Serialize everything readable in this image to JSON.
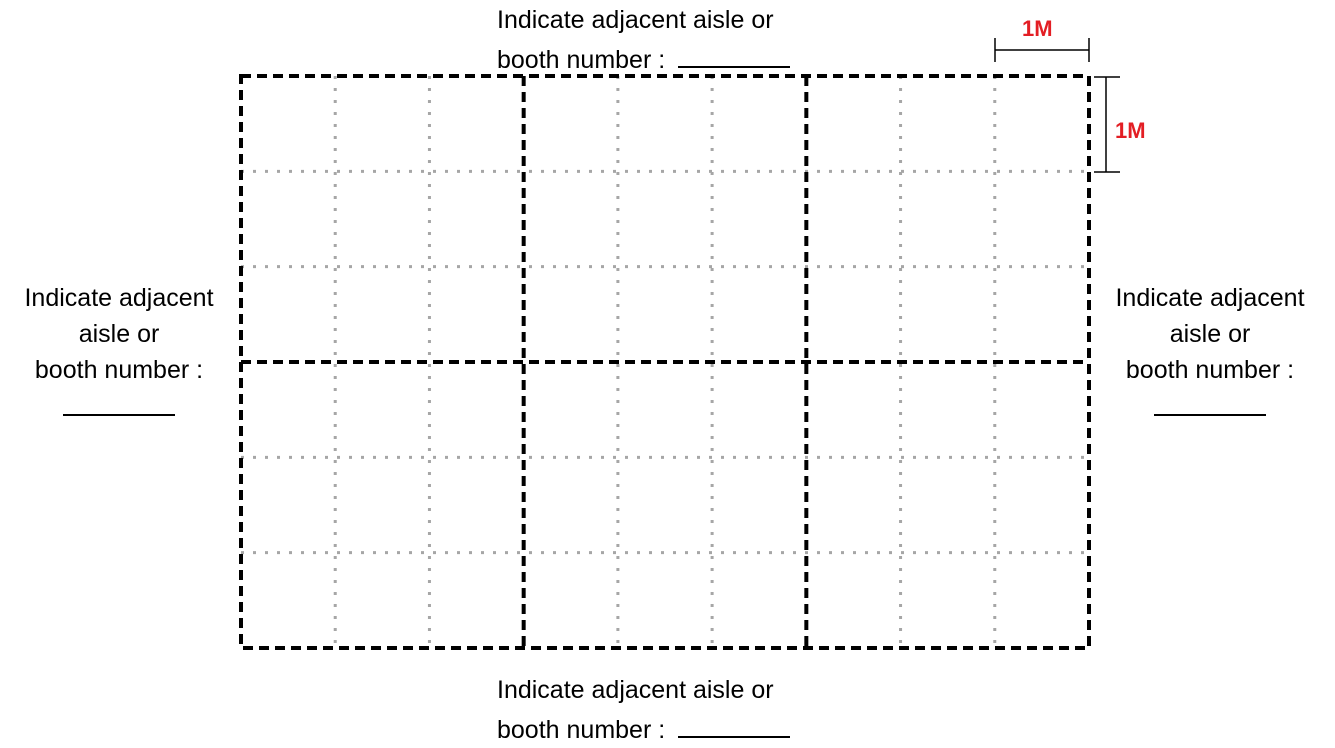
{
  "labels": {
    "top": {
      "line1": "Indicate adjacent aisle or",
      "line2": "booth number :"
    },
    "bottom": {
      "line1": "Indicate adjacent aisle or",
      "line2": "booth number :"
    },
    "left": {
      "line1": "Indicate adjacent",
      "line2": "aisle or",
      "line3": "booth number :"
    },
    "right": {
      "line1": "Indicate adjacent",
      "line2": "aisle or",
      "line3": "booth number :"
    }
  },
  "scale": {
    "horizontal": "1M",
    "vertical": "1M",
    "color": "#e31e24"
  },
  "grid": {
    "columns": 9,
    "rows": 6,
    "booth_columns": 3,
    "booth_rows": 2
  }
}
